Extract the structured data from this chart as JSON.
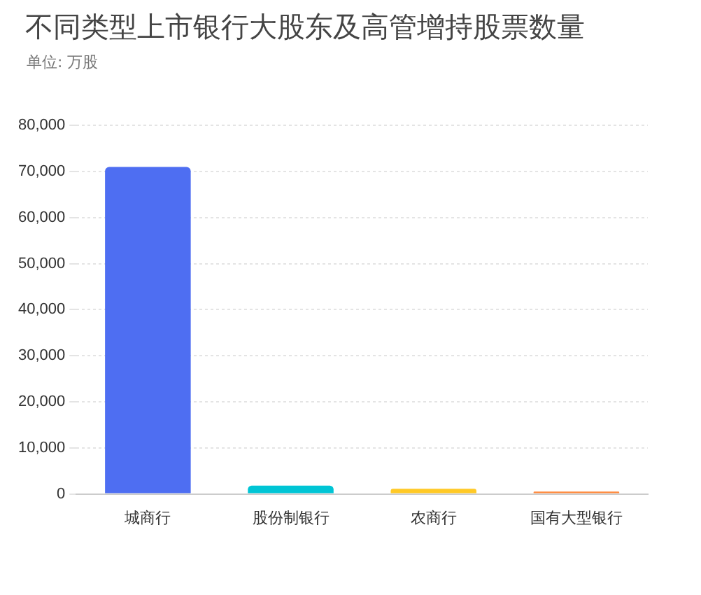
{
  "chart_data": {
    "type": "bar",
    "title": "不同类型上市银行大股东及高管增持股票数量",
    "subtitle": "单位: 万股",
    "categories": [
      "城商行",
      "股份制银行",
      "农商行",
      "国有大型银行"
    ],
    "values": [
      71000,
      1800,
      1100,
      500
    ],
    "colors": [
      "#4e6ef2",
      "#00c5d5",
      "#ffc926",
      "#ff8a3d"
    ],
    "ylim": [
      0,
      80000
    ],
    "yticks": [
      0,
      {
        "value": 10000,
        "label": "10,000"
      },
      {
        "value": 20000,
        "label": "20,000"
      },
      {
        "value": 30000,
        "label": "30,000"
      },
      {
        "value": 40000,
        "label": "40,000"
      },
      {
        "value": 50000,
        "label": "50,000"
      },
      {
        "value": 60000,
        "label": "60,000"
      },
      {
        "value": 70000,
        "label": "70,000"
      },
      {
        "value": 80000,
        "label": "80,000"
      }
    ],
    "grid": "y"
  }
}
